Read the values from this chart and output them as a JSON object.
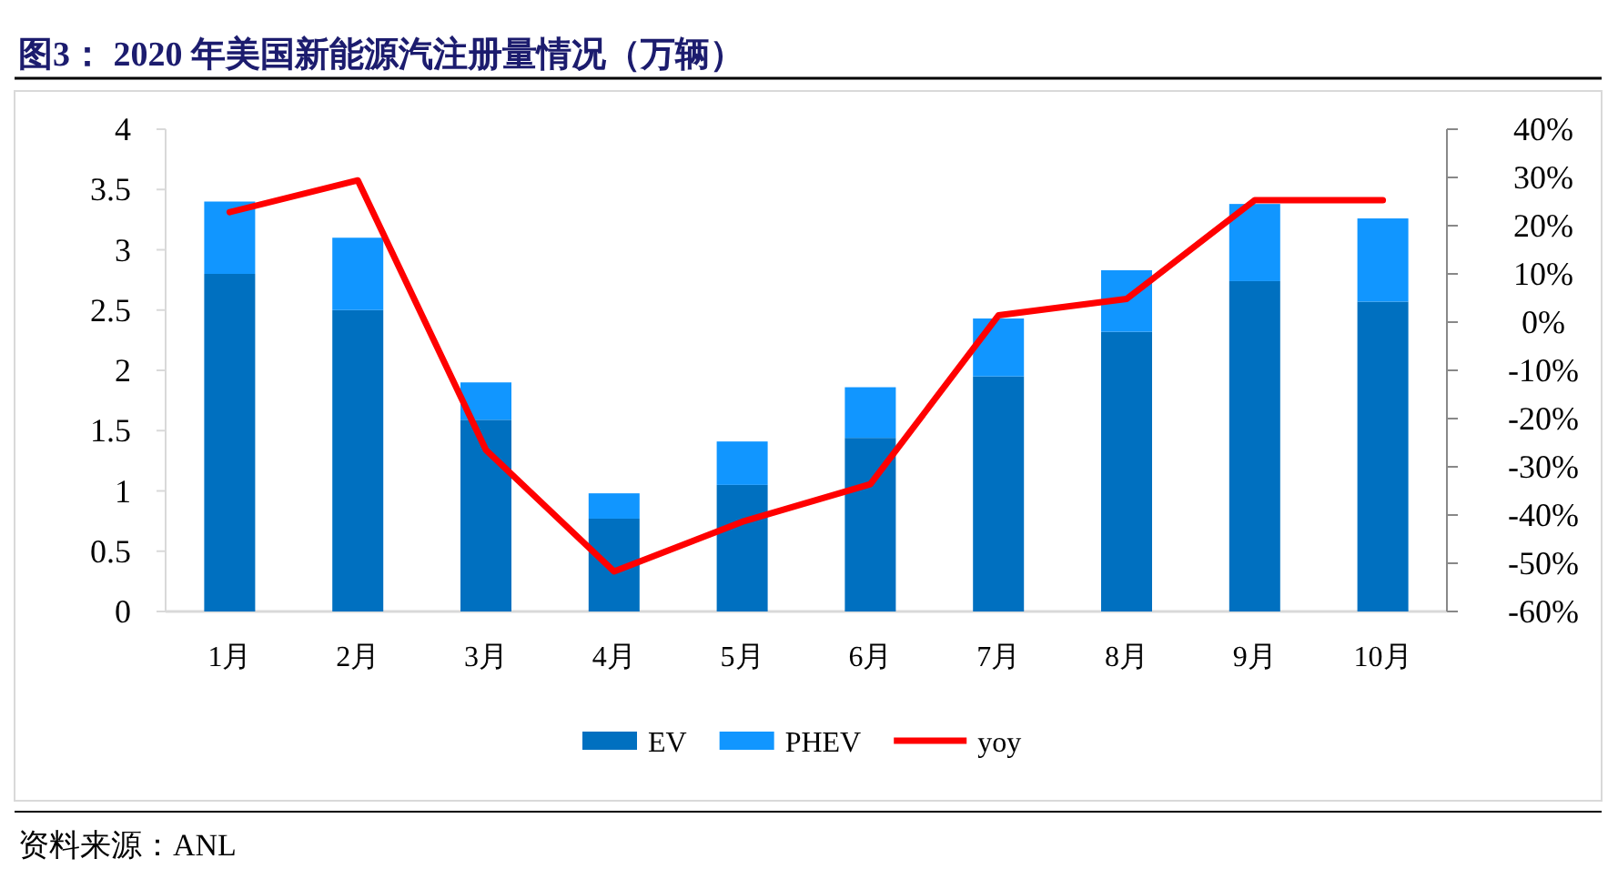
{
  "chart_data": {
    "type": "bar",
    "stacked": true,
    "title": "图3：  2020 年美国新能源汽注册量情况（万辆）",
    "categories": [
      "1月",
      "2月",
      "3月",
      "4月",
      "5月",
      "6月",
      "7月",
      "8月",
      "9月",
      "10月"
    ],
    "series": [
      {
        "name": "EV",
        "color": "#0070c0",
        "values": [
          2.8,
          2.5,
          1.59,
          0.77,
          1.05,
          1.44,
          1.95,
          2.32,
          2.74,
          2.57
        ]
      },
      {
        "name": "PHEV",
        "color": "#1196ff",
        "values": [
          0.6,
          0.6,
          0.31,
          0.21,
          0.36,
          0.42,
          0.48,
          0.51,
          0.64,
          0.69
        ]
      },
      {
        "name": "yoy",
        "type": "line",
        "axis": "y2",
        "color": "#ff0000",
        "values": [
          22.8,
          29.4,
          -26.5,
          -51.7,
          -41.4,
          -33.6,
          1.4,
          4.8,
          25.3,
          25.3
        ]
      }
    ],
    "ylim": [
      0,
      4
    ],
    "yticks": [
      0,
      0.5,
      1,
      1.5,
      2,
      2.5,
      3,
      3.5,
      4
    ],
    "y2lim": [
      -60,
      40
    ],
    "y2ticks": [
      {
        "value": 40,
        "label": "40%"
      },
      {
        "value": 30,
        "label": "30%"
      },
      {
        "value": 20,
        "label": "20%"
      },
      {
        "value": 10,
        "label": "10%"
      },
      {
        "value": 0,
        "label": "0%"
      },
      {
        "value": -10,
        "label": "-10%"
      },
      {
        "value": -20,
        "label": "-20%"
      },
      {
        "value": -30,
        "label": "-30%"
      },
      {
        "value": -40,
        "label": "-40%"
      },
      {
        "value": -50,
        "label": "-50%"
      },
      {
        "value": -60,
        "label": "-60%"
      }
    ],
    "legend": "bottom",
    "grid": false,
    "marker": "none",
    "annotations": [
      "资料来源：ANL"
    ]
  }
}
